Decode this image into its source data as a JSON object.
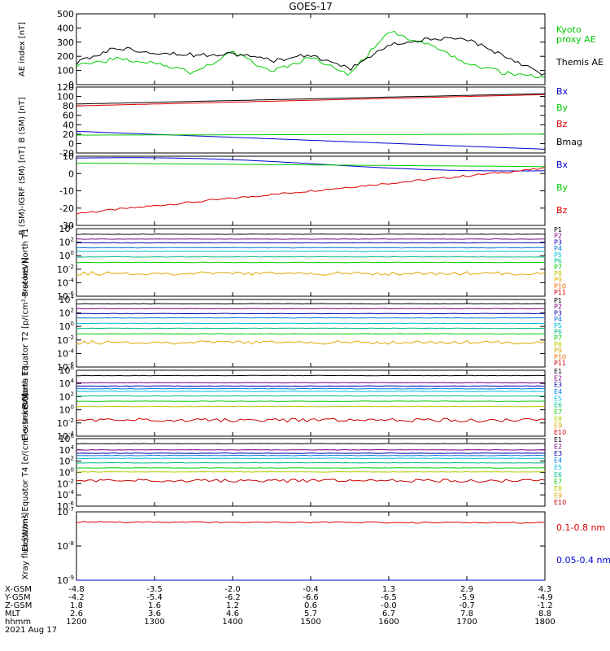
{
  "title": "GOES-17",
  "colors": {
    "black": "#000000",
    "red": "#dd0000",
    "green": "#00cc00",
    "blue": "#0000cc",
    "p": [
      "#000000",
      "#7a0080",
      "#0000aa",
      "#0077dd",
      "#00bbdd",
      "#00bb88",
      "#00cc00",
      "#bbcc00",
      "#ddaa00",
      "#ee6600",
      "#cc0000"
    ],
    "e": [
      "#000000",
      "#7a0080",
      "#0000aa",
      "#0077dd",
      "#00bbdd",
      "#00bb88",
      "#00cc00",
      "#bbcc00",
      "#ddaa00",
      "#ee6600"
    ]
  },
  "chart_data": [
    {
      "type": "line",
      "ylabel": "AE index [nT]",
      "ylim": [
        0,
        500
      ],
      "yticks": [
        "500",
        "400",
        "300",
        "200",
        "100",
        "0"
      ],
      "x": [
        "1200",
        "1230",
        "1300",
        "1330",
        "1400",
        "1430",
        "1500",
        "1530",
        "1600",
        "1630",
        "1700",
        "1730",
        "1800"
      ],
      "series": [
        {
          "name": "Kyoto proxy AE",
          "color": "#00cc00",
          "values": [
            140,
            180,
            160,
            80,
            230,
            90,
            190,
            70,
            380,
            280,
            150,
            80,
            50
          ]
        },
        {
          "name": "Themis AE",
          "color": "#000000",
          "values": [
            150,
            260,
            230,
            210,
            220,
            170,
            210,
            110,
            280,
            320,
            320,
            200,
            70
          ]
        }
      ],
      "legend": [
        {
          "text": "Kyoto",
          "color": "#00cc00"
        },
        {
          "text": "proxy AE",
          "color": "#00cc00"
        },
        {
          "text": "Themis AE",
          "color": "#000000"
        }
      ]
    },
    {
      "type": "line",
      "ylabel": "B (SM) [nT]",
      "ylim": [
        -20,
        120
      ],
      "yticks": [
        "120",
        "100",
        "80",
        "60",
        "40",
        "20",
        "0",
        "-20"
      ],
      "x": [
        "1200",
        "1800"
      ],
      "series": [
        {
          "name": "Bx",
          "color": "#0000cc",
          "values": [
            26,
            -12
          ]
        },
        {
          "name": "By",
          "color": "#00cc00",
          "values": [
            18,
            20
          ]
        },
        {
          "name": "Bz",
          "color": "#dd0000",
          "values": [
            80,
            104
          ]
        },
        {
          "name": "Bmag",
          "color": "#000000",
          "values": [
            84,
            106
          ]
        }
      ],
      "legend": [
        {
          "text": "Bx",
          "color": "#0000cc"
        },
        {
          "text": "By",
          "color": "#00cc00"
        },
        {
          "text": "Bz",
          "color": "#dd0000"
        },
        {
          "text": "Bmag",
          "color": "#000000"
        }
      ]
    },
    {
      "type": "line",
      "ylabel": "B (SM)-IGRF (SM) [nT]",
      "ylim": [
        -30,
        10
      ],
      "yticks": [
        "10",
        "0",
        "-10",
        "-20",
        "-30"
      ],
      "x": [
        "1200",
        "1800"
      ],
      "series": [
        {
          "name": "Bx",
          "color": "#0000cc",
          "values": [
            9,
            2
          ]
        },
        {
          "name": "By",
          "color": "#00cc00",
          "values": [
            6,
            4
          ]
        },
        {
          "name": "Bz",
          "color": "#dd0000",
          "values": [
            -23,
            3
          ]
        }
      ],
      "legend": [
        {
          "text": "Bx",
          "color": "#0000cc"
        },
        {
          "text": "By",
          "color": "#00cc00"
        },
        {
          "text": "Bz",
          "color": "#dd0000"
        }
      ]
    },
    {
      "type": "line",
      "ylabel": "Protons North T1",
      "log": true,
      "ylim": [
        -7,
        4
      ],
      "yticks": [
        {
          "b": "10",
          "e": "4"
        },
        {
          "b": "10",
          "e": "2"
        },
        {
          "b": "10",
          "e": "0"
        },
        {
          "b": "10",
          "e": "-2"
        },
        {
          "b": "10",
          "e": "-4"
        },
        {
          "b": "10",
          "e": "-6"
        }
      ],
      "levels": [
        3.1,
        2.3,
        1.7,
        0.9,
        0.3,
        -0.6,
        -1.5,
        -3.3
      ],
      "legend": [
        {
          "text": "P1",
          "color": "#000000"
        },
        {
          "text": "P2",
          "color": "#7a0080"
        },
        {
          "text": "P3",
          "color": "#0000aa"
        },
        {
          "text": "P4",
          "color": "#0077dd"
        },
        {
          "text": "P5",
          "color": "#00bbdd"
        },
        {
          "text": "P6",
          "color": "#00bb88"
        },
        {
          "text": "P7",
          "color": "#00cc00"
        },
        {
          "text": "P8",
          "color": "#bbcc00"
        },
        {
          "text": "P9",
          "color": "#ddaa00"
        },
        {
          "text": "P10",
          "color": "#ee6600"
        },
        {
          "text": "P11",
          "color": "#cc0000"
        }
      ]
    },
    {
      "type": "line",
      "ylabel": "Protons Equator T2 [p/(cm²-s-sr-keV)]",
      "log": true,
      "ylim": [
        -7,
        4
      ],
      "yticks": [
        {
          "b": "10",
          "e": "4"
        },
        {
          "b": "10",
          "e": "2"
        },
        {
          "b": "10",
          "e": "0"
        },
        {
          "b": "10",
          "e": "-2"
        },
        {
          "b": "10",
          "e": "-4"
        },
        {
          "b": "10",
          "e": "-6"
        }
      ],
      "levels": [
        3.3,
        2.5,
        1.7,
        1.0,
        0.1,
        -0.7,
        -1.6,
        -3.0
      ],
      "legend": [
        {
          "text": "P1",
          "color": "#000000"
        },
        {
          "text": "P2",
          "color": "#7a0080"
        },
        {
          "text": "P3",
          "color": "#0000aa"
        },
        {
          "text": "P4",
          "color": "#0077dd"
        },
        {
          "text": "P5",
          "color": "#00bbdd"
        },
        {
          "text": "P6",
          "color": "#00bb88"
        },
        {
          "text": "P7",
          "color": "#00cc00"
        },
        {
          "text": "P8",
          "color": "#bbcc00"
        },
        {
          "text": "P9",
          "color": "#ddaa00"
        },
        {
          "text": "P10",
          "color": "#ee6600"
        },
        {
          "text": "P11",
          "color": "#cc0000"
        }
      ]
    },
    {
      "type": "line",
      "ylabel": "Electrons North T3",
      "log": true,
      "ylim": [
        -4,
        6
      ],
      "yticks": [
        {
          "b": "10",
          "e": "6"
        },
        {
          "b": "10",
          "e": "4"
        },
        {
          "b": "10",
          "e": "2"
        },
        {
          "b": "10",
          "e": "0"
        },
        {
          "b": "10",
          "e": "-2"
        },
        {
          "b": "10",
          "e": "-4"
        }
      ],
      "levels": [
        5.2,
        4.1,
        3.6,
        3.2,
        2.8,
        2.1,
        1.3,
        0.5,
        -1.6
      ],
      "legend": [
        {
          "text": "E1",
          "color": "#000000"
        },
        {
          "text": "E2",
          "color": "#7a0080"
        },
        {
          "text": "E3",
          "color": "#0000aa"
        },
        {
          "text": "E4",
          "color": "#0077dd"
        },
        {
          "text": "E5",
          "color": "#00bbdd"
        },
        {
          "text": "E6",
          "color": "#00bb88"
        },
        {
          "text": "E7",
          "color": "#00cc00"
        },
        {
          "text": "E8",
          "color": "#bbcc00"
        },
        {
          "text": "E9",
          "color": "#ddaa00"
        },
        {
          "text": "E10",
          "color": "#cc0000"
        }
      ]
    },
    {
      "type": "line",
      "ylabel": "Electrons Equator T4 [e/(cm²-s-sr-keV)]",
      "log": true,
      "ylim": [
        -6,
        6
      ],
      "yticks": [
        {
          "b": "10",
          "e": "6"
        },
        {
          "b": "10",
          "e": "4"
        },
        {
          "b": "10",
          "e": "2"
        },
        {
          "b": "10",
          "e": "0"
        },
        {
          "b": "10",
          "e": "-2"
        },
        {
          "b": "10",
          "e": "-4"
        },
        {
          "b": "10",
          "e": "-6"
        }
      ],
      "levels": [
        5.1,
        4.0,
        3.4,
        3.0,
        2.5,
        1.7,
        0.8,
        0.1,
        -1.5
      ],
      "legend": [
        {
          "text": "E1",
          "color": "#000000"
        },
        {
          "text": "E2",
          "color": "#7a0080"
        },
        {
          "text": "E3",
          "color": "#0000aa"
        },
        {
          "text": "E4",
          "color": "#0077dd"
        },
        {
          "text": "E5",
          "color": "#00bbdd"
        },
        {
          "text": "E6",
          "color": "#00bb88"
        },
        {
          "text": "E7",
          "color": "#00cc00"
        },
        {
          "text": "E8",
          "color": "#bbcc00"
        },
        {
          "text": "E9",
          "color": "#ddaa00"
        },
        {
          "text": "E10",
          "color": "#cc0000"
        }
      ]
    },
    {
      "type": "line",
      "ylabel": "Xray flux [W/m²]",
      "log": true,
      "ylim": [
        -9,
        -7
      ],
      "yticks": [
        {
          "b": "10",
          "e": "-7"
        },
        {
          "b": "10",
          "e": "-8"
        },
        {
          "b": "10",
          "e": "-9"
        }
      ],
      "series": [
        {
          "name": "0.1-0.8 nm",
          "color": "#dd0000",
          "values": [
            -7.3,
            -7.32
          ]
        },
        {
          "name": "0.05-0.4 nm",
          "color": "#0000cc",
          "values": [
            -9,
            -9
          ]
        }
      ],
      "legend": [
        {
          "text": "0.1-0.8 nm",
          "color": "#dd0000"
        },
        {
          "text": "0.05-0.4 nm",
          "color": "#0000cc"
        }
      ]
    }
  ],
  "xaxis": {
    "ticks": [
      "1200",
      "1300",
      "1400",
      "1500",
      "1600",
      "1700",
      "1800"
    ],
    "rows": [
      {
        "label": "X-GSM",
        "values": [
          "-4.8",
          "-3.5",
          "-2.0",
          "-0.4",
          "1.3",
          "2.9",
          "4.3"
        ]
      },
      {
        "label": "Y-GSM",
        "values": [
          "-4.2",
          "-5.4",
          "-6.2",
          "-6.6",
          "-6.5",
          "-5.9",
          "-4.9"
        ]
      },
      {
        "label": "Z-GSM",
        "values": [
          "1.8",
          "1.6",
          "1.2",
          "0.6",
          "-0.0",
          "-0.7",
          "-1.2"
        ]
      },
      {
        "label": "MLT",
        "values": [
          "2.6",
          "3.6",
          "4.6",
          "5.7",
          "6.7",
          "7.8",
          "8.8"
        ]
      },
      {
        "label": "hhmm",
        "values": [
          "1200",
          "1300",
          "1400",
          "1500",
          "1600",
          "1700",
          "1800"
        ]
      }
    ],
    "date": "2021 Aug 17"
  }
}
